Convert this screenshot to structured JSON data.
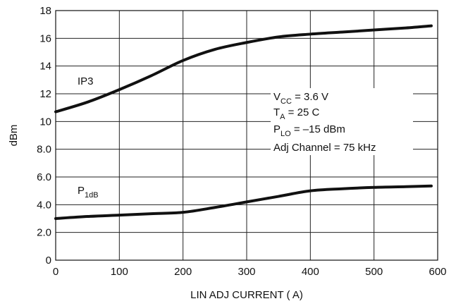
{
  "chart_data": {
    "type": "line",
    "xlabel": "LIN ADJ CURRENT (    A)",
    "ylabel": "dBm",
    "xlim": [
      0,
      600
    ],
    "ylim": [
      0,
      18
    ],
    "grid": true,
    "x_ticks": [
      "0",
      "100",
      "200",
      "300",
      "400",
      "500",
      "600"
    ],
    "y_ticks": [
      "0",
      "2.0",
      "4.0",
      "6.0",
      "8.0",
      "10",
      "12",
      "14",
      "16",
      "18"
    ],
    "series": [
      {
        "name": "IP3",
        "x": [
          0,
          50,
          100,
          150,
          200,
          250,
          300,
          350,
          400,
          450,
          500,
          550,
          590
        ],
        "y": [
          10.7,
          11.4,
          12.3,
          13.3,
          14.4,
          15.2,
          15.7,
          16.1,
          16.3,
          16.45,
          16.6,
          16.75,
          16.9
        ]
      },
      {
        "name": "P1dB",
        "x": [
          0,
          50,
          100,
          150,
          200,
          250,
          300,
          350,
          400,
          450,
          500,
          550,
          590
        ],
        "y": [
          3.0,
          3.15,
          3.25,
          3.35,
          3.45,
          3.8,
          4.2,
          4.6,
          5.0,
          5.15,
          5.25,
          5.3,
          5.35
        ]
      }
    ],
    "curve_labels": {
      "ip3": "IP3",
      "p1db_main": "P",
      "p1db_sub": "1dB"
    },
    "annotations": [
      {
        "main": "V",
        "sub": "CC",
        "rest": " = 3.6 V"
      },
      {
        "main": "T",
        "sub": "A",
        "rest": " = 25  C"
      },
      {
        "main": "P",
        "sub": "LO",
        "rest": " = –15 dBm"
      },
      {
        "main": "Adj Channel = 75 kHz",
        "sub": "",
        "rest": ""
      }
    ]
  }
}
